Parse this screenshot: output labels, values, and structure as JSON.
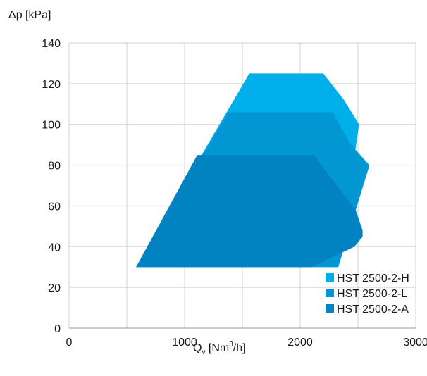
{
  "chart_data": {
    "type": "area",
    "xlabel_main": "Q",
    "xlabel_sub": "v",
    "xlabel_rest": " [Nm",
    "xlabel_sup": "3",
    "xlabel_end": "/h]",
    "ylabel": "Δp [kPa]",
    "xlim": [
      0,
      3000
    ],
    "ylim": [
      0,
      140
    ],
    "xticks": [
      0,
      1000,
      2000,
      3000
    ],
    "yticks": [
      0,
      20,
      40,
      60,
      80,
      100,
      120,
      140
    ],
    "grid": true,
    "legend_position": "bottom-right",
    "series": [
      {
        "name": "HST 2500-2-H",
        "color": "#00aeea",
        "polygon": [
          [
            580,
            30
          ],
          [
            1560,
            125
          ],
          [
            2200,
            125
          ],
          [
            2380,
            112
          ],
          [
            2510,
            100
          ],
          [
            2330,
            30
          ]
        ]
      },
      {
        "name": "HST 2500-2-L",
        "color": "#0297d3",
        "polygon": [
          [
            580,
            30
          ],
          [
            1380,
            106
          ],
          [
            2280,
            106
          ],
          [
            2440,
            90
          ],
          [
            2600,
            80
          ],
          [
            2330,
            30
          ]
        ]
      },
      {
        "name": "HST 2500-2-A",
        "color": "#0283c1",
        "polygon": [
          [
            580,
            30
          ],
          [
            1110,
            85
          ],
          [
            2120,
            85
          ],
          [
            2250,
            75
          ],
          [
            2480,
            58
          ],
          [
            2540,
            48
          ],
          [
            2540,
            45
          ],
          [
            2470,
            40
          ],
          [
            2100,
            30
          ]
        ]
      }
    ],
    "draw_order": [
      0,
      1,
      2
    ],
    "legend_order": [
      0,
      1,
      2
    ]
  }
}
